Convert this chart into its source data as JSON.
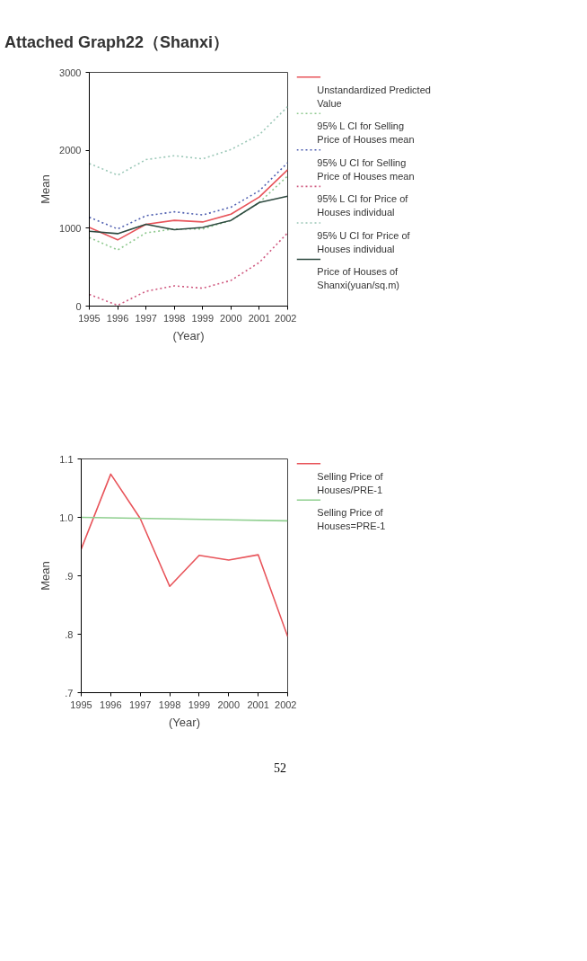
{
  "chart_data": [
    {
      "type": "line",
      "title": "Attached Graph22（Shanxi）",
      "xlabel": "(Year)",
      "ylabel": "Mean",
      "x": [
        1995,
        1996,
        1997,
        1998,
        1999,
        2000,
        2001,
        2002
      ],
      "xlim": [
        1995,
        2002
      ],
      "xticks": [
        1995,
        1996,
        1997,
        1998,
        1999,
        2000,
        2001,
        2002
      ],
      "ylim": [
        0,
        3000
      ],
      "yticks": [
        0,
        1000,
        2000,
        3000
      ],
      "grid": false,
      "legend": "right",
      "marker": "none",
      "series": [
        {
          "name": "Unstandardized Predicted Value",
          "color": "#e8545a",
          "line_style": "solid",
          "values": [
            1010,
            850,
            1050,
            1100,
            1080,
            1180,
            1400,
            1750
          ]
        },
        {
          "name": "95% L CI for Selling Price of Houses mean",
          "color": "#8fc98f",
          "line_style": "dotted",
          "values": [
            880,
            720,
            940,
            990,
            990,
            1100,
            1330,
            1670
          ]
        },
        {
          "name": "95% U CI for Selling Price of Houses mean",
          "color": "#4f5fb0",
          "line_style": "dotted",
          "values": [
            1140,
            990,
            1160,
            1210,
            1170,
            1270,
            1480,
            1840
          ]
        },
        {
          "name": "95% L CI for Price of Houses individual",
          "color": "#d05a80",
          "line_style": "dotted",
          "values": [
            150,
            10,
            190,
            260,
            230,
            330,
            560,
            940
          ]
        },
        {
          "name": "95% U CI for Price of Houses individual",
          "color": "#9cc8b8",
          "line_style": "dotted",
          "values": [
            1830,
            1680,
            1880,
            1930,
            1890,
            2010,
            2200,
            2560
          ]
        },
        {
          "name": "Price of Houses of Shanxi(yuan/sq.m)",
          "color": "#2e4a40",
          "line_style": "solid",
          "values": [
            960,
            930,
            1050,
            980,
            1010,
            1100,
            1330,
            1410
          ]
        }
      ]
    },
    {
      "type": "line",
      "xlabel": "(Year)",
      "ylabel": "Mean",
      "xlim": [
        1995,
        2002
      ],
      "xticks": [
        1995,
        1996,
        1997,
        1998,
        1999,
        2000,
        2001,
        2002
      ],
      "ylim": [
        0.7,
        1.1
      ],
      "yticks": [
        {
          "value": 0.7,
          "label": ".7"
        },
        {
          "value": 0.8,
          "label": ".8"
        },
        {
          "value": 0.9,
          "label": ".9"
        },
        {
          "value": 1.0,
          "label": "1.0"
        },
        {
          "value": 1.1,
          "label": "1.1"
        }
      ],
      "grid": false,
      "legend": "right",
      "marker": "none",
      "annotations": [
        "52"
      ],
      "series": [
        {
          "name": "Selling Price of Houses/PRE-1",
          "color": "#e8545a",
          "line_style": "solid",
          "x": [
            1995,
            1996,
            1997,
            1998,
            1999,
            2000,
            2001,
            2002
          ],
          "values": [
            0.946,
            1.074,
            0.998,
            0.882,
            0.935,
            0.927,
            0.936,
            0.796
          ]
        },
        {
          "name": "Selling Price of Houses=PRE-1",
          "color": "#8fcf8f",
          "line_style": "solid",
          "x": [
            1995,
            2002
          ],
          "values": [
            1.0,
            0.994
          ]
        }
      ]
    }
  ]
}
